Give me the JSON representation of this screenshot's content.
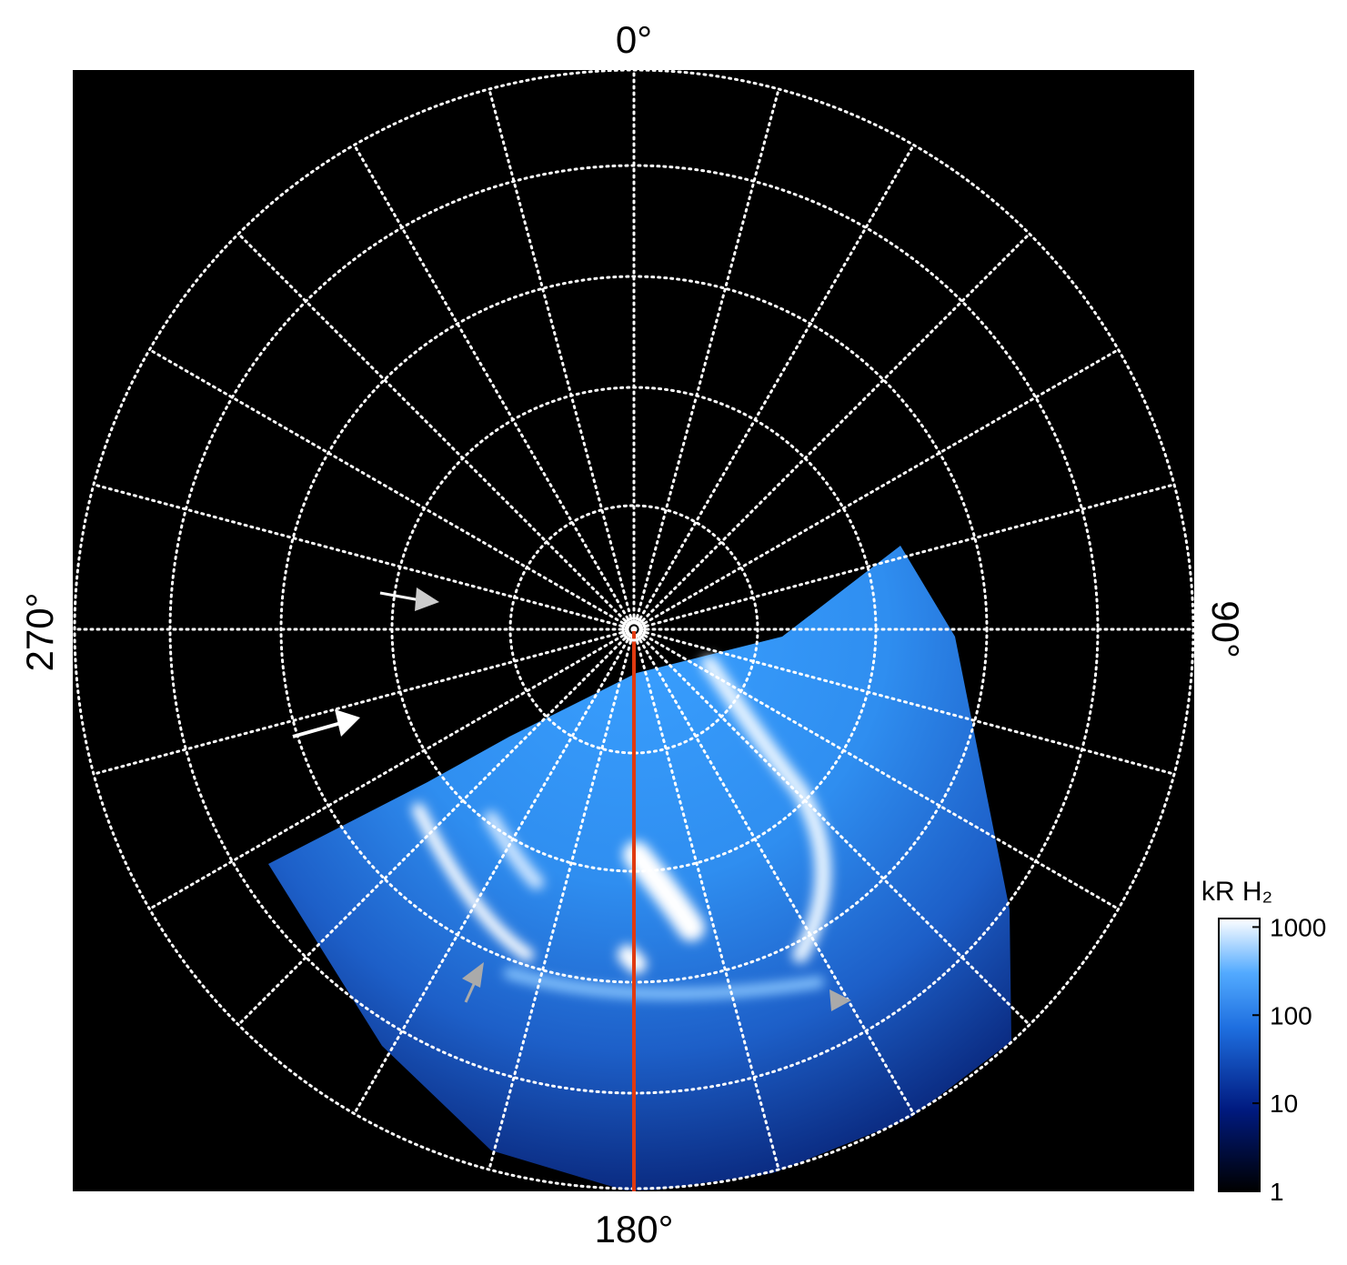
{
  "figure": {
    "azimuth_labels": {
      "top": "0°",
      "right": "90°",
      "bottom": "180°",
      "left": "270°"
    },
    "colorbar": {
      "title": "kR H₂",
      "log": true,
      "lim": [
        1,
        1250
      ],
      "ticks": [
        1,
        10,
        100,
        1000
      ]
    }
  }
}
